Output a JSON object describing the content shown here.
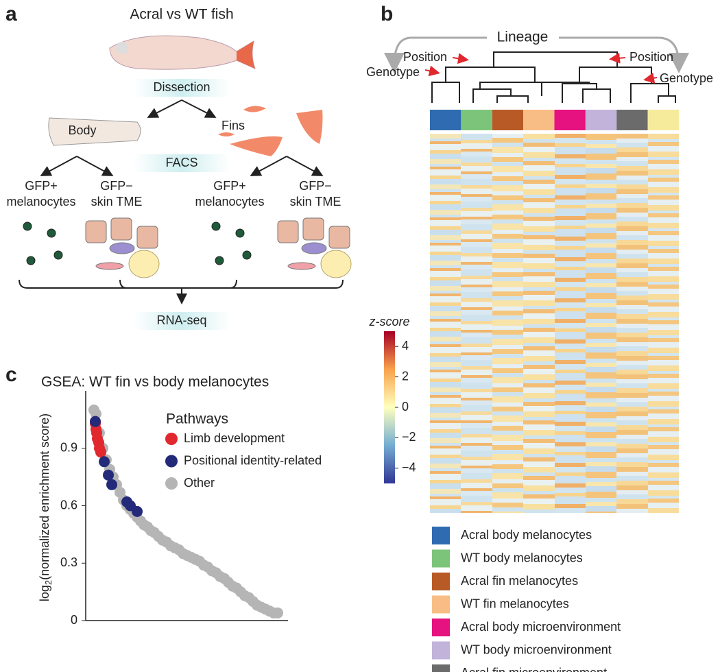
{
  "panel_a": {
    "label": "a",
    "title": "Acral vs WT fish",
    "step1": "Dissection",
    "body": "Body",
    "fins": "Fins",
    "step2": "FACS",
    "groups": [
      [
        "GFP+",
        "melanocytes"
      ],
      [
        "GFP−",
        "skin TME"
      ],
      [
        "GFP+",
        "melanocytes"
      ],
      [
        "GFP−",
        "skin TME"
      ]
    ],
    "step3": "RNA-seq"
  },
  "panel_b": {
    "label": "b",
    "lineage": "Lineage",
    "position_left": "Position",
    "position_right": "Position",
    "genotype_left": "Genotype",
    "genotype_right": "Genotype",
    "colorbar": {
      "title": "z-score",
      "clim": [
        -5,
        5
      ],
      "ticks": [
        4,
        2,
        0,
        {
          "value": -2,
          "label": "−2"
        },
        {
          "value": -4,
          "label": "−4"
        }
      ]
    },
    "groups": [
      {
        "name": "Acral body melanocytes",
        "color": "#2f6bb0"
      },
      {
        "name": "WT body melanocytes",
        "color": "#7cc47a"
      },
      {
        "name": "Acral fin melanocytes",
        "color": "#b85a26"
      },
      {
        "name": "WT fin melanocytes",
        "color": "#f8bd84"
      },
      {
        "name": "Acral body microenvironment",
        "color": "#e5127f"
      },
      {
        "name": "WT body microenvironment",
        "color": "#c1b3da"
      },
      {
        "name": "Acral fin microenvironment",
        "color": "#6b6b6b"
      },
      {
        "name": null,
        "color": "#f6eb9b"
      }
    ]
  },
  "chart_data": {
    "type": "scatter",
    "label": "c",
    "title": "GSEA: WT fin vs body melanocytes",
    "y_label": [
      "log",
      "2",
      "(normalized enrichment score)"
    ],
    "legend_title": "Pathways",
    "xlim": [
      0,
      295
    ],
    "ylim": [
      0,
      1.2
    ],
    "yticks": [
      0,
      0.3,
      0.6,
      0.9
    ],
    "series": [
      {
        "name": "Other",
        "color": "#b5b5b5",
        "x": [
          12,
          15,
          20,
          25,
          30,
          35,
          40,
          45,
          50,
          55,
          60,
          65,
          70,
          75,
          80,
          85,
          90,
          95,
          100,
          106,
          112,
          118,
          124,
          130,
          136,
          142,
          148,
          154,
          160,
          166,
          172,
          178,
          184,
          190,
          196,
          202,
          208,
          214,
          220,
          226,
          232,
          238,
          244,
          250,
          256,
          262,
          268,
          274,
          280
        ],
        "values": [
          1.1,
          1.08,
          0.98,
          0.9,
          0.84,
          0.79,
          0.75,
          0.71,
          0.67,
          0.63,
          0.6,
          0.58,
          0.56,
          0.54,
          0.52,
          0.5,
          0.49,
          0.47,
          0.46,
          0.44,
          0.42,
          0.41,
          0.39,
          0.38,
          0.37,
          0.35,
          0.34,
          0.33,
          0.32,
          0.31,
          0.29,
          0.28,
          0.26,
          0.25,
          0.23,
          0.22,
          0.2,
          0.18,
          0.17,
          0.15,
          0.13,
          0.12,
          0.1,
          0.08,
          0.07,
          0.06,
          0.05,
          0.04,
          0.04
        ]
      },
      {
        "name": "Limb development",
        "color": "#e0282e",
        "x": [
          14,
          15,
          16,
          17,
          19,
          20,
          22
        ],
        "values": [
          1.03,
          1.0,
          0.98,
          0.95,
          0.93,
          0.9,
          0.88
        ]
      },
      {
        "name": "Positional identity-related",
        "color": "#232a7a",
        "x": [
          14,
          27,
          33,
          38,
          60,
          65,
          75
        ],
        "values": [
          1.04,
          0.83,
          0.76,
          0.71,
          0.62,
          0.6,
          0.57
        ]
      }
    ]
  }
}
